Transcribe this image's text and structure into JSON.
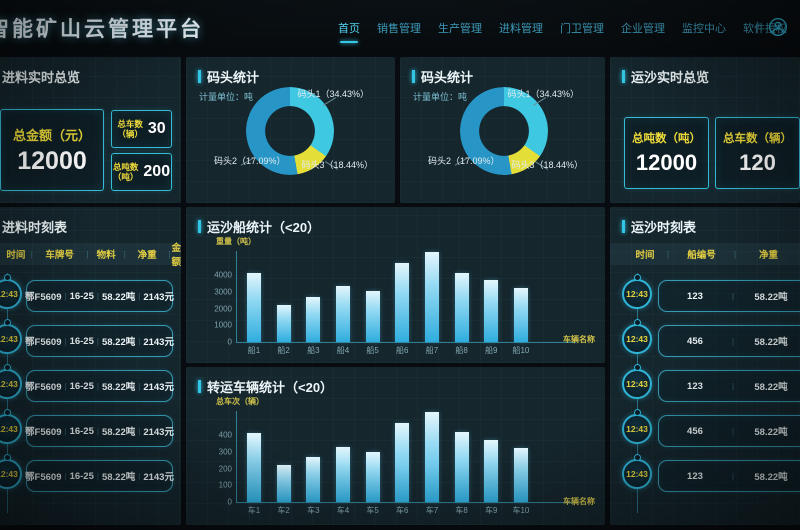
{
  "header": {
    "logo": "智能矿山云管理平台",
    "nav": [
      {
        "name": "nav-item-home",
        "label": "首页",
        "active": true
      },
      {
        "name": "nav-item-sales",
        "label": "销售管理",
        "active": false
      },
      {
        "name": "nav-item-production",
        "label": "生产管理",
        "active": false
      },
      {
        "name": "nav-item-feeding",
        "label": "进料管理",
        "active": false
      },
      {
        "name": "nav-item-gate",
        "label": "门卫管理",
        "active": false
      },
      {
        "name": "nav-item-enterprise",
        "label": "企业管理",
        "active": false
      },
      {
        "name": "nav-item-monitor",
        "label": "监控中心",
        "active": false
      },
      {
        "name": "nav-item-license",
        "label": "软件授权",
        "active": false
      }
    ],
    "divider": "|",
    "user_icon": "user-icon"
  },
  "colors": {
    "accent_cyan": "#33c5e5",
    "label_yellow": "#f0dc3a",
    "panel_bg": "#15262d",
    "bar_top": "#e4f6fc",
    "bar_bottom": "#2fadde",
    "donut_dock1": "#3fc8e2",
    "donut_dock2": "#2795c5",
    "donut_dock3": "#e4de39"
  },
  "panels": {
    "feed_overview": {
      "title": "进料实时总览",
      "amount_label": "总金额（元）",
      "amount_value": "12000",
      "stats": [
        {
          "label": "总车数",
          "unit": "（辆）",
          "value": "30"
        },
        {
          "label": "总吨数",
          "unit": "（吨）",
          "value": "200"
        }
      ]
    },
    "dock_stats": {
      "title": "码头统计",
      "unit_note": "计量单位：吨"
    },
    "sand_overview": {
      "title": "运沙实时总览",
      "stats": [
        {
          "label": "总吨数（吨）",
          "value": "12000"
        },
        {
          "label": "总车数（辆）",
          "value": "120"
        }
      ]
    },
    "feed_schedule": {
      "title": "进料时刻表",
      "headers": [
        "时间",
        "车牌号",
        "物料",
        "净重",
        "金额"
      ],
      "rows": [
        {
          "time": "12:43",
          "plate": "鄂F5609",
          "material": "16-25",
          "weight": "58.22吨",
          "amount": "2143元"
        },
        {
          "time": "12:43",
          "plate": "鄂F5609",
          "material": "16-25",
          "weight": "58.22吨",
          "amount": "2143元"
        },
        {
          "time": "12:43",
          "plate": "鄂F5609",
          "material": "16-25",
          "weight": "58.22吨",
          "amount": "2143元"
        },
        {
          "time": "12:43",
          "plate": "鄂F5609",
          "material": "16-25",
          "weight": "58.22吨",
          "amount": "2143元"
        },
        {
          "time": "12:43",
          "plate": "鄂F5609",
          "material": "16-25",
          "weight": "58.22吨",
          "amount": "2143元"
        }
      ]
    },
    "sand_schedule": {
      "title": "运沙时刻表",
      "headers": [
        "时间",
        "船编号",
        "净重"
      ],
      "rows": [
        {
          "time": "12:43",
          "ship": "123",
          "weight": "58.22吨"
        },
        {
          "time": "12:43",
          "ship": "456",
          "weight": "58.22吨"
        },
        {
          "time": "12:43",
          "ship": "123",
          "weight": "58.22吨"
        },
        {
          "time": "12:43",
          "ship": "456",
          "weight": "58.22吨"
        },
        {
          "time": "12:43",
          "ship": "123",
          "weight": "58.22吨"
        }
      ]
    }
  },
  "chart_data": [
    {
      "type": "pie",
      "title": "码头统计",
      "unit_note": "计量单位：吨",
      "instances": 2,
      "start_deg": -25,
      "slices": [
        {
          "name": "码头1",
          "pct": "34.43%",
          "value": 34.43,
          "color": "#3fc8e2",
          "angle_deg": 150
        },
        {
          "name": "码头2",
          "pct": "17.09%",
          "value": 17.09,
          "color": "#2795c5",
          "angle_deg": 165
        },
        {
          "name": "码头3",
          "pct": "18.44%",
          "value": 18.44,
          "color": "#e4de39",
          "angle_deg": 45
        }
      ],
      "render_order": [
        0,
        2,
        1
      ],
      "legend_position": "around-donut"
    },
    {
      "type": "bar",
      "title": "运沙船统计（<20）",
      "ylabel": "重量（吨）",
      "xlabel": "车辆名称",
      "categories": [
        "船1",
        "船2",
        "船3",
        "船4",
        "船5",
        "船6",
        "船7",
        "船8",
        "船9",
        "船10"
      ],
      "values": [
        4100,
        2200,
        2700,
        3350,
        3050,
        4750,
        5400,
        4150,
        3700,
        3250
      ],
      "yticks": [
        0,
        1000,
        2000,
        3000,
        4000
      ],
      "ylim": [
        0,
        5500
      ],
      "grid": false
    },
    {
      "type": "bar",
      "title": "转运车辆统计（<20）",
      "ylabel": "总车次（辆）",
      "xlabel": "车辆名称",
      "categories": [
        "车1",
        "车2",
        "车3",
        "车4",
        "车5",
        "车6",
        "车7",
        "车8",
        "车9",
        "车10"
      ],
      "values": [
        410,
        220,
        270,
        330,
        300,
        470,
        540,
        420,
        370,
        320
      ],
      "yticks": [
        0,
        100,
        200,
        300,
        400
      ],
      "ylim": [
        0,
        550
      ],
      "grid": false
    }
  ]
}
